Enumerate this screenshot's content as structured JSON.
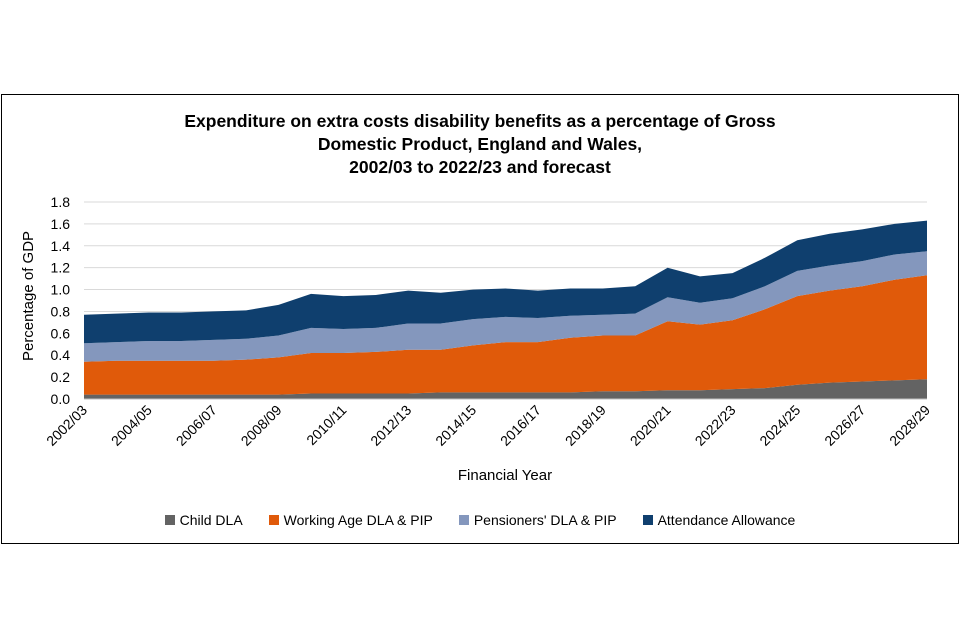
{
  "chart_data": {
    "type": "area",
    "stacked": true,
    "title_lines": [
      "Expenditure on extra costs disability benefits as a percentage of Gross",
      "Domestic Product, England and Wales,",
      "2002/03 to 2022/23 and forecast"
    ],
    "xlabel": "Financial Year",
    "ylabel": "Percentage of GDP",
    "ylim": [
      0,
      1.8
    ],
    "yticks": [
      "0.0",
      "0.2",
      "0.4",
      "0.6",
      "0.8",
      "1.0",
      "1.2",
      "1.4",
      "1.6",
      "1.8"
    ],
    "grid": true,
    "legend_position": "bottom",
    "categories": [
      "2002/03",
      "2003/04",
      "2004/05",
      "2005/06",
      "2006/07",
      "2007/08",
      "2008/09",
      "2009/10",
      "2010/11",
      "2011/12",
      "2012/13",
      "2013/14",
      "2014/15",
      "2015/16",
      "2016/17",
      "2017/18",
      "2018/19",
      "2019/20",
      "2020/21",
      "2021/22",
      "2022/23",
      "2023/24",
      "2024/25",
      "2025/26",
      "2026/27",
      "2027/28",
      "2028/29"
    ],
    "tick_labels": [
      "2002/03",
      "2004/05",
      "2006/07",
      "2008/09",
      "2010/11",
      "2012/13",
      "2014/15",
      "2016/17",
      "2018/19",
      "2020/21",
      "2022/23",
      "2024/25",
      "2026/27",
      "2028/29"
    ],
    "series": [
      {
        "name": "Child DLA",
        "color": "#636363",
        "values": [
          0.04,
          0.04,
          0.04,
          0.04,
          0.04,
          0.04,
          0.04,
          0.05,
          0.05,
          0.05,
          0.05,
          0.06,
          0.06,
          0.06,
          0.06,
          0.06,
          0.07,
          0.07,
          0.08,
          0.08,
          0.09,
          0.1,
          0.13,
          0.15,
          0.16,
          0.17,
          0.18
        ]
      },
      {
        "name": "Working Age DLA & PIP",
        "color": "#e05a0a",
        "values": [
          0.3,
          0.31,
          0.31,
          0.31,
          0.31,
          0.32,
          0.34,
          0.37,
          0.37,
          0.38,
          0.4,
          0.39,
          0.43,
          0.46,
          0.46,
          0.5,
          0.51,
          0.51,
          0.63,
          0.6,
          0.63,
          0.72,
          0.81,
          0.84,
          0.87,
          0.92,
          0.95
        ]
      },
      {
        "name": "Pensioners' DLA & PIP",
        "color": "#8497bd",
        "values": [
          0.17,
          0.17,
          0.18,
          0.18,
          0.19,
          0.19,
          0.2,
          0.23,
          0.22,
          0.22,
          0.24,
          0.24,
          0.24,
          0.23,
          0.22,
          0.2,
          0.19,
          0.2,
          0.22,
          0.2,
          0.2,
          0.21,
          0.23,
          0.23,
          0.23,
          0.23,
          0.22
        ]
      },
      {
        "name": "Attendance Allowance",
        "color": "#0f3f6e",
        "values": [
          0.26,
          0.26,
          0.26,
          0.26,
          0.26,
          0.26,
          0.28,
          0.31,
          0.3,
          0.3,
          0.3,
          0.28,
          0.27,
          0.26,
          0.25,
          0.25,
          0.24,
          0.25,
          0.27,
          0.24,
          0.23,
          0.26,
          0.28,
          0.29,
          0.29,
          0.28,
          0.28
        ]
      }
    ]
  }
}
